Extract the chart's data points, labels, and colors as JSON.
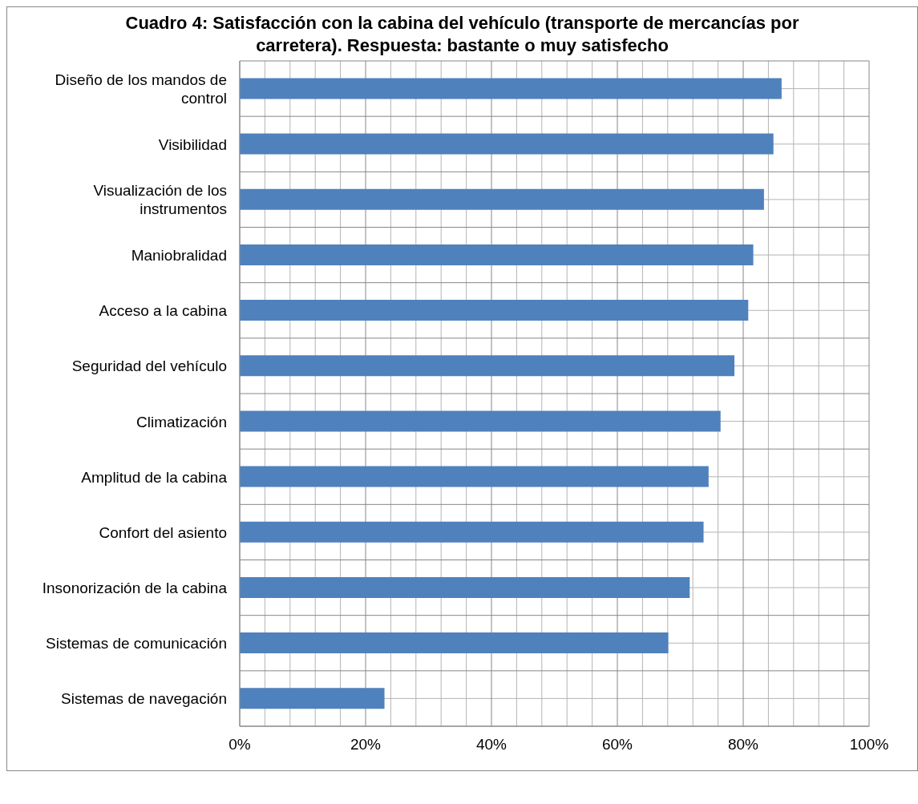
{
  "chart_data": {
    "type": "bar",
    "orientation": "horizontal",
    "title": "Cuadro 4: Satisfacción con la cabina del vehículo (transporte de mercancías por carretera). Respuesta: bastante o muy satisfecho",
    "categories": [
      "Diseño de los mandos de control",
      "Visibilidad",
      "Visualización de los instrumentos",
      "Maniobralidad",
      "Acceso a la cabina",
      "Seguridad del vehículo",
      "Climatización",
      "Amplitud de la cabina",
      "Confort del asiento",
      "Insonorización de la cabina",
      "Sistemas de comunicación",
      "Sistemas de navegación"
    ],
    "values": [
      86.1,
      84.8,
      83.3,
      81.6,
      80.8,
      78.6,
      76.4,
      74.5,
      73.7,
      71.5,
      68.1,
      23.0
    ],
    "color": "#4f81bd",
    "xlim": [
      0,
      100
    ],
    "xticks": [
      {
        "value": 0,
        "label": "0%"
      },
      {
        "value": 4,
        "label": null
      },
      {
        "value": 8,
        "label": null
      },
      {
        "value": 12,
        "label": null
      },
      {
        "value": 16,
        "label": null
      },
      {
        "value": 20,
        "label": "20%"
      },
      {
        "value": 24,
        "label": null
      },
      {
        "value": 28,
        "label": null
      },
      {
        "value": 32,
        "label": null
      },
      {
        "value": 36,
        "label": null
      },
      {
        "value": 40,
        "label": "40%"
      },
      {
        "value": 44,
        "label": null
      },
      {
        "value": 48,
        "label": null
      },
      {
        "value": 52,
        "label": null
      },
      {
        "value": 56,
        "label": null
      },
      {
        "value": 60,
        "label": "60%"
      },
      {
        "value": 64,
        "label": null
      },
      {
        "value": 68,
        "label": null
      },
      {
        "value": 72,
        "label": null
      },
      {
        "value": 76,
        "label": null
      },
      {
        "value": 80,
        "label": "80%"
      },
      {
        "value": 84,
        "label": null
      },
      {
        "value": 88,
        "label": null
      },
      {
        "value": 92,
        "label": null
      },
      {
        "value": 96,
        "label": null
      },
      {
        "value": 100,
        "label": "100%"
      }
    ],
    "grid": true
  }
}
